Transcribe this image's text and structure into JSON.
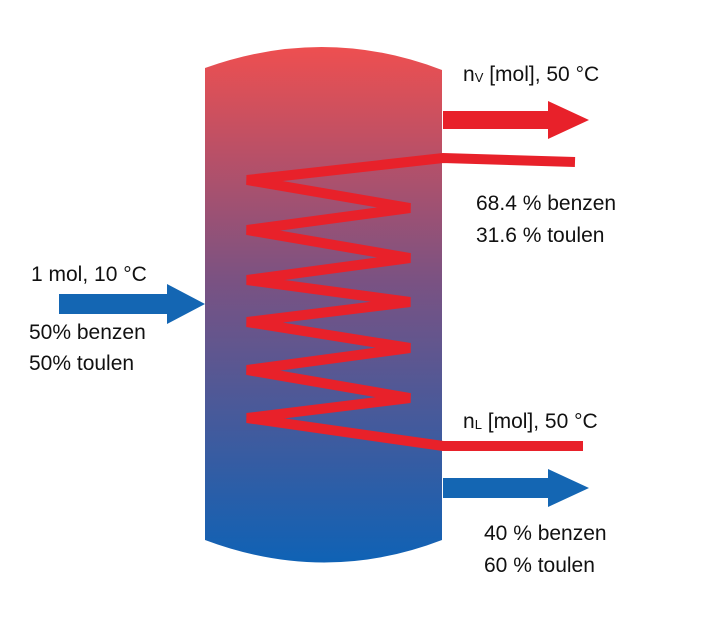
{
  "colors": {
    "vessel_top": "#ee4f50",
    "vessel_bottom": "#0f62b5",
    "hot_stream": "#e8212a",
    "feed_stream": "#1466b3",
    "text": "#111111"
  },
  "feed": {
    "label": "1 mol, 10 °C",
    "composition": [
      "50% benzen",
      "50% toulen"
    ]
  },
  "vapor": {
    "symbol": "n",
    "subscript": "V",
    "rest": " [mol], 50 °C",
    "composition": [
      "68.4 % benzen",
      "31.6 % toulen"
    ]
  },
  "liquid": {
    "symbol": "n",
    "subscript": "L",
    "rest": " [mol], 50 °C",
    "composition": [
      "40 % benzen",
      "60 % toulen"
    ]
  }
}
